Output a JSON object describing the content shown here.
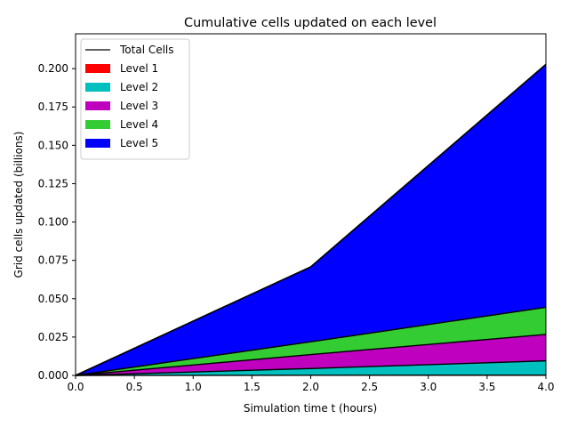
{
  "chart_data": {
    "type": "area",
    "stacked": true,
    "title": "Cumulative cells updated on each level",
    "xlabel": "Simulation time t (hours)",
    "ylabel": "Grid cells updated (billions)",
    "xlim": [
      0,
      4
    ],
    "ylim": [
      0,
      0.2227
    ],
    "xticks": [
      "0.0",
      "0.5",
      "1.0",
      "1.5",
      "2.0",
      "2.5",
      "3.0",
      "3.5",
      "4.0"
    ],
    "yticks": [
      "0.000",
      "0.025",
      "0.050",
      "0.075",
      "0.100",
      "0.125",
      "0.150",
      "0.175",
      "0.200"
    ],
    "grid": false,
    "legend_position": "top-left",
    "x": [
      0,
      2,
      4
    ],
    "total_line": {
      "name": "Total Cells",
      "color": "#000000"
    },
    "series": [
      {
        "name": "Level 1",
        "color": "#ff0000",
        "values": [
          0,
          0.0001,
          0.0002
        ]
      },
      {
        "name": "Level 2",
        "color": "#00bfbf",
        "values": [
          0,
          0.0044,
          0.0093
        ]
      },
      {
        "name": "Level 3",
        "color": "#bf00bf",
        "values": [
          0,
          0.0091,
          0.0172
        ]
      },
      {
        "name": "Level 4",
        "color": "#33cc33",
        "values": [
          0,
          0.0083,
          0.0177
        ]
      },
      {
        "name": "Level 5",
        "color": "#0000ff",
        "values": [
          0,
          0.0489,
          0.1584
        ]
      }
    ]
  }
}
